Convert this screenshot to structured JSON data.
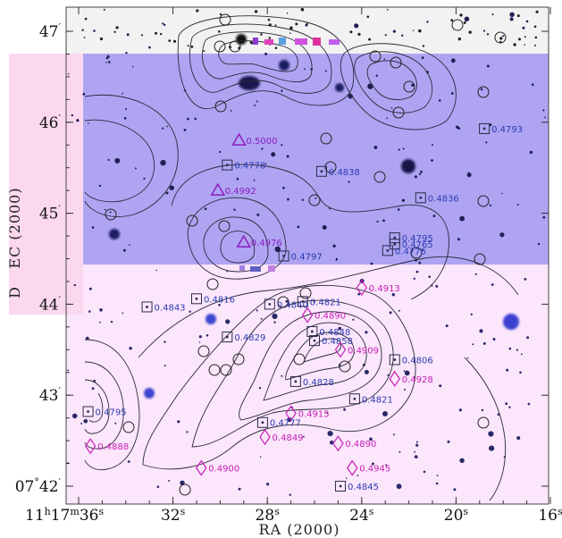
{
  "figure": {
    "x_axis_label": "RA (2000)",
    "y_axis_label_top": "D",
    "y_axis_label_rest": "EC (2000)",
    "x_ticks": [
      {
        "h": "11",
        "m": "17",
        "s": "36",
        "ra_s": 36
      },
      {
        "s": "32",
        "ra_s": 32
      },
      {
        "s": "28",
        "ra_s": 28
      },
      {
        "s": "24",
        "ra_s": 24
      },
      {
        "s": "20",
        "ra_s": 20
      },
      {
        "s": "16",
        "ra_s": 16
      }
    ],
    "y_ticks": [
      {
        "deg": "",
        "min": "47",
        "dec_min": 47
      },
      {
        "deg": "",
        "min": "46",
        "dec_min": 46
      },
      {
        "deg": "",
        "min": "45",
        "dec_min": 45
      },
      {
        "deg": "",
        "min": "44",
        "dec_min": 44
      },
      {
        "deg": "",
        "min": "43",
        "dec_min": 43
      },
      {
        "deg": "07",
        "min": "42",
        "dec_min": 42
      }
    ],
    "colors": {
      "top_panel": "#ffffff",
      "middle_panel": "#aea4f2",
      "bottom_panel": "#fbe6fb",
      "left_strip": "#fbd8ee",
      "contour": "#2a2a3a",
      "label_blue": "#2b3bb0",
      "label_magenta": "#c61fb6",
      "label_purple": "#8a1cc0"
    }
  },
  "galaxies": [
    {
      "z": "0.4793",
      "shape": "square",
      "ra": 18.8,
      "dec": 45.93
    },
    {
      "z": "0.5000",
      "shape": "triangle",
      "ra": 29.2,
      "dec": 45.8
    },
    {
      "z": "0.4778",
      "shape": "square",
      "ra": 29.7,
      "dec": 45.53
    },
    {
      "z": "0.4838",
      "shape": "square",
      "ra": 25.7,
      "dec": 45.46
    },
    {
      "z": "0.4992",
      "shape": "triangle",
      "ra": 30.1,
      "dec": 45.25
    },
    {
      "z": "0.4836",
      "shape": "square",
      "ra": 21.5,
      "dec": 45.17
    },
    {
      "z": "0.4976",
      "shape": "triangle",
      "ra": 29.0,
      "dec": 44.68
    },
    {
      "z": "0.4797",
      "shape": "square",
      "ra": 27.3,
      "dec": 44.53
    },
    {
      "z": "0.4795",
      "shape": "square",
      "ra": 22.6,
      "dec": 44.73
    },
    {
      "z": "0.4765",
      "shape": "square",
      "ra": 22.6,
      "dec": 44.66
    },
    {
      "z": "0.4776",
      "shape": "square",
      "ra": 22.9,
      "dec": 44.59
    },
    {
      "z": "0.4913",
      "shape": "diamond",
      "ra": 24.0,
      "dec": 44.18
    },
    {
      "z": "0.4843",
      "shape": "square",
      "ra": 33.1,
      "dec": 43.97
    },
    {
      "z": "0.4816",
      "shape": "square",
      "ra": 31.0,
      "dec": 44.06
    },
    {
      "z": "0.4821",
      "shape": "square",
      "ra": 26.5,
      "dec": 44.03
    },
    {
      "z": "0.4840",
      "shape": "square",
      "ra": 27.9,
      "dec": 44.0
    },
    {
      "z": "0.4890",
      "shape": "diamond",
      "ra": 26.3,
      "dec": 43.88
    },
    {
      "z": "0.4829",
      "shape": "square",
      "ra": 29.7,
      "dec": 43.64
    },
    {
      "z": "0.4848",
      "shape": "square",
      "ra": 26.1,
      "dec": 43.7
    },
    {
      "z": "0.4858",
      "shape": "square",
      "ra": 26.0,
      "dec": 43.6
    },
    {
      "z": "0.4909",
      "shape": "diamond",
      "ra": 24.9,
      "dec": 43.5
    },
    {
      "z": "0.4806",
      "shape": "square",
      "ra": 22.6,
      "dec": 43.39
    },
    {
      "z": "0.4828",
      "shape": "square",
      "ra": 26.8,
      "dec": 43.15
    },
    {
      "z": "0.4928",
      "shape": "diamond",
      "ra": 22.6,
      "dec": 43.18
    },
    {
      "z": "0.4821",
      "shape": "square",
      "ra": 24.3,
      "dec": 42.96
    },
    {
      "z": "0.4795",
      "shape": "square",
      "ra": 35.6,
      "dec": 42.82
    },
    {
      "z": "0.4915",
      "shape": "diamond",
      "ra": 27.0,
      "dec": 42.8
    },
    {
      "z": "0.4777",
      "shape": "square",
      "ra": 28.2,
      "dec": 42.7
    },
    {
      "z": "0.4849",
      "shape": "diamond",
      "ra": 28.1,
      "dec": 42.54
    },
    {
      "z": "0.4888",
      "shape": "diamond",
      "ra": 35.5,
      "dec": 42.44
    },
    {
      "z": "0.4890",
      "shape": "diamond",
      "ra": 25.0,
      "dec": 42.47
    },
    {
      "z": "0.4900",
      "shape": "diamond",
      "ra": 30.8,
      "dec": 42.2
    },
    {
      "z": "0.4945",
      "shape": "diamond",
      "ra": 24.4,
      "dec": 42.2
    },
    {
      "z": "0.4845",
      "shape": "square",
      "ra": 24.9,
      "dec": 42.0
    }
  ]
}
